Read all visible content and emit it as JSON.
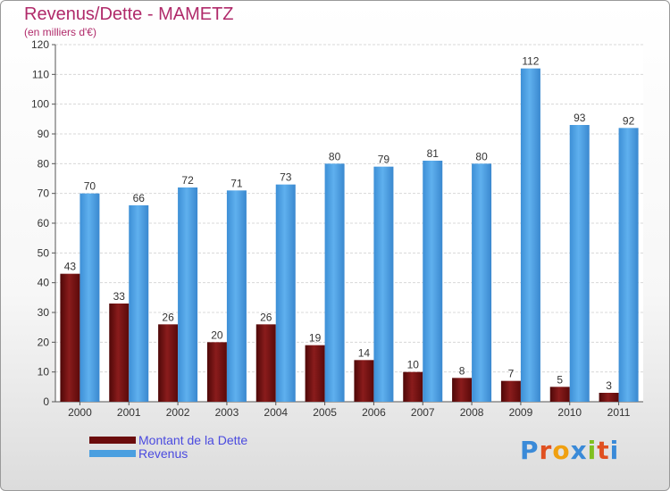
{
  "chart_data": {
    "type": "bar",
    "title": "Revenus/Dette - MAMETZ",
    "subtitle": "(en milliers d'€)",
    "categories": [
      "2000",
      "2001",
      "2002",
      "2003",
      "2004",
      "2005",
      "2006",
      "2007",
      "2008",
      "2009",
      "2010",
      "2011"
    ],
    "series": [
      {
        "name": "Montant de la Dette",
        "color": "#7a1010",
        "values": [
          43,
          33,
          26,
          20,
          26,
          19,
          14,
          10,
          8,
          7,
          5,
          3
        ]
      },
      {
        "name": "Revenus",
        "color": "#4a9fe0",
        "values": [
          70,
          66,
          72,
          71,
          73,
          80,
          79,
          81,
          80,
          112,
          93,
          92
        ]
      }
    ],
    "ylim": [
      0,
      120
    ],
    "yticks": [
      0,
      10,
      20,
      30,
      40,
      50,
      60,
      70,
      80,
      90,
      100,
      110,
      120
    ],
    "grid": true,
    "legend": "bottom-left"
  },
  "logo": {
    "text": "Proxiti",
    "letters": [
      "P",
      "r",
      "o",
      "x",
      "i",
      "t",
      "i"
    ],
    "colors": [
      "#3a8ad8",
      "#e05020",
      "#f0a010",
      "#3a8ad8",
      "#80c020",
      "#e05020",
      "#3a8ad8"
    ]
  }
}
